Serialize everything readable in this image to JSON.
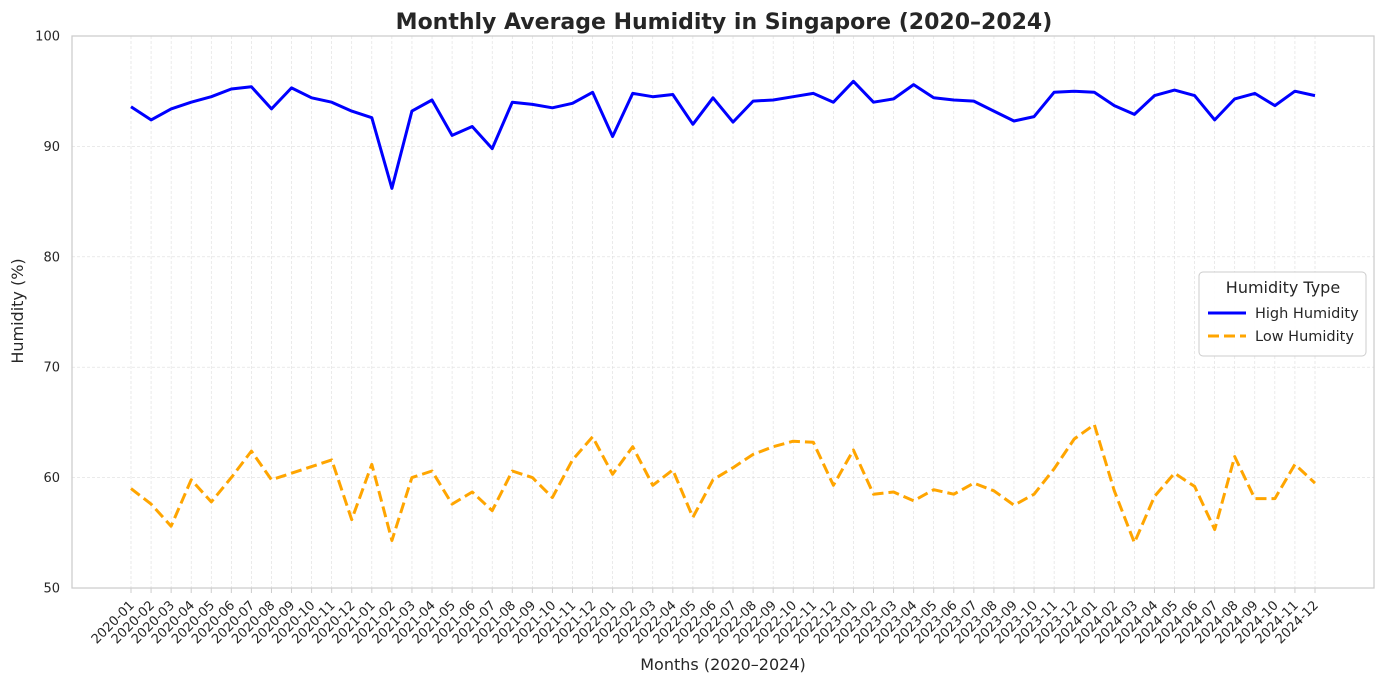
{
  "chart_data": {
    "type": "line",
    "title": "Monthly Average Humidity in Singapore (2020–2024)",
    "xlabel": "Months (2020–2024)",
    "ylabel": "Humidity (%)",
    "ylim": [
      50,
      100
    ],
    "yticks": [
      50,
      60,
      70,
      80,
      90,
      100
    ],
    "grid": true,
    "legend": {
      "title": "Humidity Type",
      "placement": "center-right"
    },
    "categories": [
      "2020-01",
      "2020-02",
      "2020-03",
      "2020-04",
      "2020-05",
      "2020-06",
      "2020-07",
      "2020-08",
      "2020-09",
      "2020-10",
      "2020-11",
      "2020-12",
      "2021-01",
      "2021-02",
      "2021-03",
      "2021-04",
      "2021-05",
      "2021-06",
      "2021-07",
      "2021-08",
      "2021-09",
      "2021-10",
      "2021-11",
      "2021-12",
      "2022-01",
      "2022-02",
      "2022-03",
      "2022-04",
      "2022-05",
      "2022-06",
      "2022-07",
      "2022-08",
      "2022-09",
      "2022-10",
      "2022-11",
      "2022-12",
      "2023-01",
      "2023-02",
      "2023-03",
      "2023-04",
      "2023-05",
      "2023-06",
      "2023-07",
      "2023-08",
      "2023-09",
      "2023-10",
      "2023-11",
      "2023-12",
      "2024-01",
      "2024-02",
      "2024-03",
      "2024-04",
      "2024-05",
      "2024-06",
      "2024-07",
      "2024-08",
      "2024-09",
      "2024-10",
      "2024-11",
      "2024-12"
    ],
    "series": [
      {
        "name": "High Humidity",
        "color": "#0000ff",
        "style": "solid",
        "values": [
          93.6,
          92.4,
          93.4,
          94.0,
          94.5,
          95.2,
          95.4,
          93.4,
          95.3,
          94.4,
          94.0,
          93.2,
          92.6,
          86.2,
          93.2,
          94.2,
          91.0,
          91.8,
          89.8,
          94.0,
          93.8,
          93.5,
          93.9,
          94.9,
          90.9,
          94.8,
          94.5,
          94.7,
          92.0,
          94.4,
          92.2,
          94.1,
          94.2,
          94.5,
          94.8,
          94.0,
          95.9,
          94.0,
          94.3,
          95.6,
          94.4,
          94.2,
          94.1,
          93.2,
          92.3,
          92.7,
          94.9,
          95.0,
          94.9,
          93.7,
          92.9,
          94.6,
          95.1,
          94.6,
          92.4,
          94.3,
          94.8,
          93.7,
          95.0,
          94.6
        ]
      },
      {
        "name": "Low Humidity",
        "color": "#ffa500",
        "style": "dashed",
        "values": [
          59.0,
          57.6,
          55.6,
          59.8,
          57.8,
          60.0,
          62.4,
          59.8,
          60.4,
          61.0,
          61.6,
          56.2,
          61.2,
          54.3,
          60.0,
          60.6,
          57.6,
          58.7,
          57.0,
          60.6,
          60.0,
          58.2,
          61.6,
          63.7,
          60.3,
          62.8,
          59.3,
          60.7,
          56.4,
          59.8,
          60.9,
          62.1,
          62.8,
          63.3,
          63.2,
          59.3,
          62.5,
          58.5,
          58.7,
          57.9,
          58.9,
          58.5,
          59.5,
          58.8,
          57.5,
          58.5,
          60.8,
          63.5,
          64.8,
          58.8,
          54.1,
          58.3,
          60.4,
          59.2,
          55.3,
          61.9,
          58.1,
          58.1,
          61.2,
          59.5
        ]
      }
    ]
  }
}
